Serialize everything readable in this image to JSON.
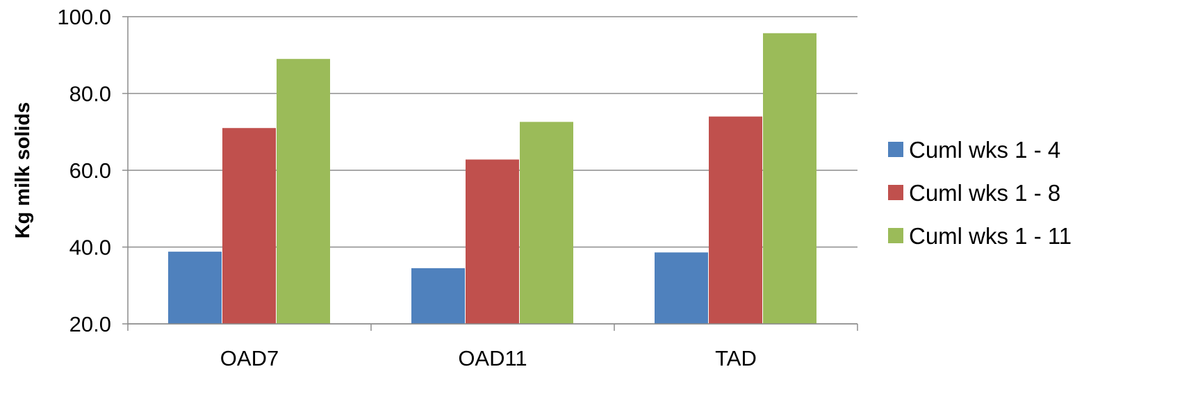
{
  "chart_data": {
    "type": "bar",
    "title": "",
    "xlabel": "",
    "ylabel": "Kg milk solids",
    "ylim": [
      20,
      100
    ],
    "yticks": [
      20,
      40,
      60,
      80,
      100
    ],
    "ytick_labels": [
      "20.0",
      "40.0",
      "60.0",
      "80.0",
      "100.0"
    ],
    "categories": [
      "OAD7",
      "OAD11",
      "TAD"
    ],
    "series": [
      {
        "name": "Cuml wks 1 - 4",
        "color": "#4F81BD",
        "values": [
          38.8,
          34.5,
          38.6
        ]
      },
      {
        "name": "Cuml wks 1 - 8",
        "color": "#C0504D",
        "values": [
          71.0,
          62.8,
          74.0
        ]
      },
      {
        "name": "Cuml wks 1 - 11",
        "color": "#9BBB59",
        "values": [
          89.0,
          72.6,
          95.7
        ]
      }
    ],
    "grid": true,
    "legend_position": "right"
  }
}
